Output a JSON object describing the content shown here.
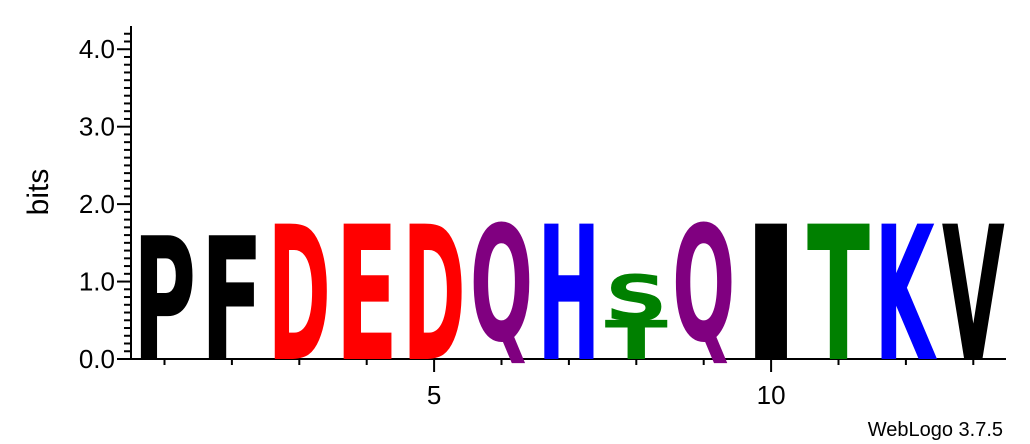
{
  "chart_data": {
    "type": "sequence-logo",
    "ylabel": "bits",
    "ylim": [
      0,
      4.3
    ],
    "y_ticks": [
      "0.0",
      "1.0",
      "2.0",
      "3.0",
      "4.0"
    ],
    "x_range": [
      1,
      13
    ],
    "x_tick_labels": [
      {
        "position": 5,
        "label": "5"
      },
      {
        "position": 10,
        "label": "10"
      }
    ],
    "columns": [
      {
        "position": 1,
        "letters": [
          {
            "char": "P",
            "height": 1.6,
            "color": "#000000"
          }
        ]
      },
      {
        "position": 2,
        "letters": [
          {
            "char": "F",
            "height": 1.6,
            "color": "#000000"
          }
        ]
      },
      {
        "position": 3,
        "letters": [
          {
            "char": "D",
            "height": 1.75,
            "color": "#ff0000"
          }
        ]
      },
      {
        "position": 4,
        "letters": [
          {
            "char": "E",
            "height": 1.75,
            "color": "#ff0000"
          }
        ]
      },
      {
        "position": 5,
        "letters": [
          {
            "char": "D",
            "height": 1.75,
            "color": "#ff0000"
          }
        ]
      },
      {
        "position": 6,
        "letters": [
          {
            "char": "Q",
            "height": 1.75,
            "color": "#800080"
          }
        ]
      },
      {
        "position": 7,
        "letters": [
          {
            "char": "H",
            "height": 1.75,
            "color": "#0000ff"
          }
        ]
      },
      {
        "position": 8,
        "letters": [
          {
            "char": "T",
            "height": 0.5,
            "color": "#008000"
          },
          {
            "char": "S",
            "height": 0.6,
            "color": "#008000"
          }
        ]
      },
      {
        "position": 9,
        "letters": [
          {
            "char": "Q",
            "height": 1.75,
            "color": "#800080"
          }
        ]
      },
      {
        "position": 10,
        "letters": [
          {
            "char": "I",
            "height": 1.75,
            "color": "#000000"
          }
        ]
      },
      {
        "position": 11,
        "letters": [
          {
            "char": "T",
            "height": 1.75,
            "color": "#008000"
          }
        ]
      },
      {
        "position": 12,
        "letters": [
          {
            "char": "K",
            "height": 1.75,
            "color": "#0000ff"
          }
        ]
      },
      {
        "position": 13,
        "letters": [
          {
            "char": "V",
            "height": 1.75,
            "color": "#000000"
          }
        ]
      }
    ]
  },
  "credit": "WebLogo 3.7.5"
}
